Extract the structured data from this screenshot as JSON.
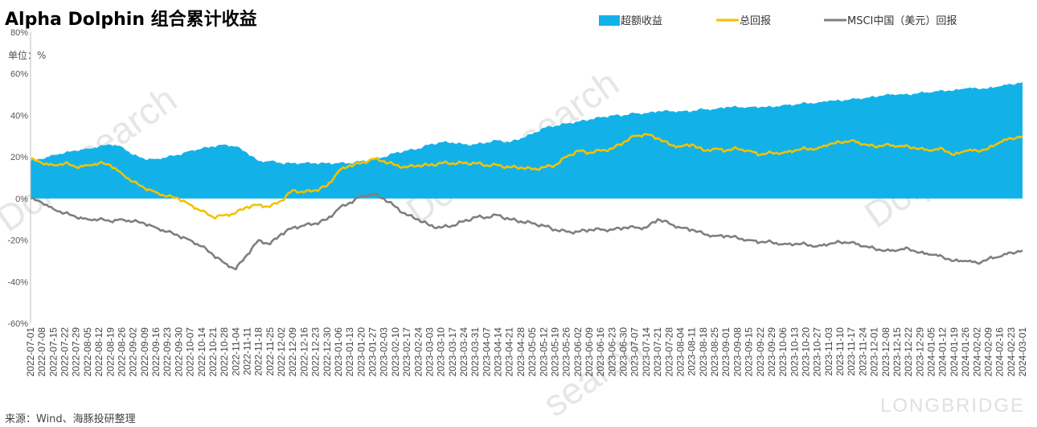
{
  "chart_data": {
    "type": "line",
    "title": "Alpha Dolphin 组合累计收益",
    "unit_label": "单位：%",
    "source": "来源：Wind、海豚投研整理",
    "watermark_brand": "LONGBRIDGE",
    "ylim": [
      -60,
      80
    ],
    "y_ticks": [
      "80%",
      "60%",
      "40%",
      "20%",
      "0%",
      "-20%",
      "-40%",
      "-60%"
    ],
    "y_tick_values": [
      80,
      60,
      40,
      20,
      0,
      -20,
      -40,
      -60
    ],
    "legend_position": "top-right",
    "x_labels": [
      "2022-07-01",
      "2022-07-08",
      "2022-07-15",
      "2022-07-22",
      "2022-07-29",
      "2022-08-05",
      "2022-08-12",
      "2022-08-19",
      "2022-08-26",
      "2022-09-02",
      "2022-09-09",
      "2022-09-16",
      "2022-09-23",
      "2022-09-30",
      "2022-10-07",
      "2022-10-14",
      "2022-10-21",
      "2022-10-28",
      "2022-11-04",
      "2022-11-11",
      "2022-11-18",
      "2022-11-25",
      "2022-12-02",
      "2022-12-09",
      "2022-12-16",
      "2022-12-23",
      "2022-12-30",
      "2023-01-06",
      "2023-01-13",
      "2023-01-20",
      "2023-01-27",
      "2023-02-03",
      "2023-02-10",
      "2023-02-17",
      "2023-02-24",
      "2023-03-03",
      "2023-03-10",
      "2023-03-17",
      "2023-03-24",
      "2023-03-31",
      "2023-04-07",
      "2023-04-14",
      "2023-04-21",
      "2023-04-28",
      "2023-05-05",
      "2023-05-12",
      "2023-05-19",
      "2023-05-26",
      "2023-06-02",
      "2023-06-09",
      "2023-06-16",
      "2023-06-23",
      "2023-06-30",
      "2023-07-07",
      "2023-07-14",
      "2023-07-21",
      "2023-07-28",
      "2023-08-04",
      "2023-08-11",
      "2023-08-18",
      "2023-08-25",
      "2023-09-01",
      "2023-09-08",
      "2023-09-15",
      "2023-09-22",
      "2023-09-29",
      "2023-10-06",
      "2023-10-13",
      "2023-10-20",
      "2023-10-27",
      "2023-11-03",
      "2023-11-10",
      "2023-11-17",
      "2023-11-24",
      "2023-12-01",
      "2023-12-08",
      "2023-12-15",
      "2023-12-22",
      "2023-12-29",
      "2024-01-05",
      "2024-01-12",
      "2024-01-19",
      "2024-01-26",
      "2024-02-02",
      "2024-02-09",
      "2024-02-16",
      "2024-02-23",
      "2024-03-01"
    ],
    "series": [
      {
        "name": "超额收益",
        "kind": "area",
        "color": "#12b2e9",
        "values": [
          18,
          19,
          21,
          22,
          23,
          24,
          25,
          26,
          25,
          21,
          19,
          19,
          20,
          21,
          23,
          24,
          25,
          26,
          25,
          22,
          18,
          18,
          17,
          17,
          17,
          17,
          17,
          17,
          17,
          18,
          19,
          20,
          22,
          23,
          24,
          26,
          27,
          27,
          26,
          26,
          27,
          28,
          27,
          29,
          31,
          34,
          35,
          36,
          37,
          38,
          39,
          40,
          40,
          41,
          41,
          42,
          42,
          42,
          42,
          43,
          43,
          44,
          44,
          44,
          44,
          44,
          45,
          45,
          46,
          46,
          47,
          47,
          48,
          48,
          49,
          50,
          50,
          50,
          51,
          51,
          52,
          52,
          53,
          53,
          53,
          54,
          55,
          56
        ]
      },
      {
        "name": "总回报",
        "kind": "line",
        "color": "#f2c200",
        "values": [
          19,
          17,
          16,
          17,
          15,
          16,
          17,
          16,
          12,
          8,
          5,
          3,
          1,
          0,
          -3,
          -6,
          -9,
          -8,
          -7,
          -4,
          -3,
          -4,
          -1,
          4,
          3,
          4,
          6,
          13,
          16,
          17,
          19,
          18,
          16,
          15,
          16,
          16,
          17,
          17,
          17,
          17,
          16,
          16,
          15,
          15,
          14,
          15,
          16,
          20,
          23,
          22,
          23,
          24,
          27,
          30,
          31,
          29,
          26,
          25,
          26,
          23,
          24,
          23,
          24,
          23,
          21,
          22,
          22,
          23,
          24,
          24,
          26,
          27,
          28,
          26,
          25,
          26,
          25,
          25,
          24,
          23,
          24,
          21,
          23,
          23,
          24,
          27,
          29,
          30
        ]
      },
      {
        "name": "MSCI中国（美元）回报",
        "kind": "line",
        "color": "#7f7f7f",
        "values": [
          0,
          -2,
          -5,
          -7,
          -9,
          -10,
          -10,
          -11,
          -10,
          -11,
          -12,
          -14,
          -16,
          -18,
          -20,
          -23,
          -27,
          -31,
          -34,
          -27,
          -20,
          -22,
          -17,
          -14,
          -13,
          -12,
          -10,
          -5,
          -2,
          1,
          2,
          0,
          -4,
          -8,
          -10,
          -13,
          -14,
          -13,
          -11,
          -9,
          -9,
          -8,
          -10,
          -11,
          -12,
          -13,
          -15,
          -16,
          -16,
          -15,
          -15,
          -15,
          -14,
          -14,
          -14,
          -10,
          -12,
          -14,
          -15,
          -17,
          -18,
          -18,
          -19,
          -20,
          -21,
          -21,
          -22,
          -22,
          -22,
          -23,
          -22,
          -21,
          -21,
          -23,
          -24,
          -25,
          -25,
          -24,
          -26,
          -27,
          -28,
          -30,
          -30,
          -31,
          -29,
          -28,
          -26,
          -25
        ]
      }
    ]
  }
}
